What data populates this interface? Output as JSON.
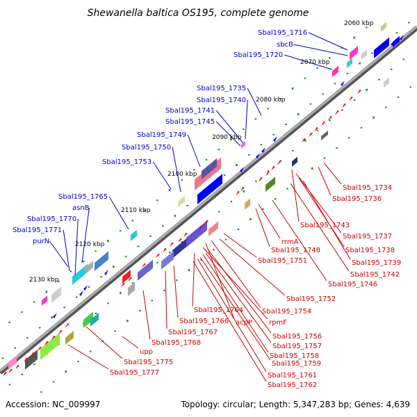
{
  "title": "Shewanella baltica OS195, complete genome",
  "footer": {
    "accession": "Accession: NC_009997",
    "summary": "Topology: circular; Length: 5,347,283 bp; Genes: 4,639"
  },
  "kbp_labels": [
    "2060 kbp",
    "2070 kbp",
    "2080 kbp",
    "2090 kbp",
    "2100 kbp",
    "2110 kbp",
    "2120 kbp",
    "2130 kbp"
  ],
  "upper_labels": [
    "Sbal195_1716",
    "sbcB",
    "Sbal195_1720",
    "Sbal195_1735",
    "Sbal195_1740",
    "Sbal195_1741",
    "Sbal195_1745",
    "Sbal195_1749",
    "Sbal195_1750",
    "Sbal195_1753",
    "Sbal195_1765",
    "asnB",
    "Sbal195_1770",
    "Sbal195_1771",
    "purN"
  ],
  "lower_labels": [
    "Sbal195_1734",
    "Sbal195_1736",
    "Sbal195_1743",
    "Sbal195_1737",
    "rrmA",
    "Sbal195_1738",
    "Sbal195_1748",
    "Sbal195_1739",
    "Sbal195_1751",
    "Sbal195_1742",
    "Sbal195_1746",
    "Sbal195_1752",
    "Sbal195_1764",
    "Sbal195_1754",
    "Sbal195_1766",
    "acpP",
    "rpmF",
    "Sbal195_1767",
    "Sbal195_1756",
    "Sbal195_1768",
    "Sbal195_1757",
    "upp",
    "Sbal195_1758",
    "Sbal195_1775",
    "Sbal195_1759",
    "Sbal195_1777",
    "Sbal195_1761",
    "Sbal195_1762"
  ],
  "colors": {
    "backbone": "#808080",
    "forward_strand": "#0000ff",
    "reverse_strand": "#ff0000",
    "label_upper": "#0000cc",
    "label_lower": "#cc0000",
    "tick": "#008000"
  }
}
